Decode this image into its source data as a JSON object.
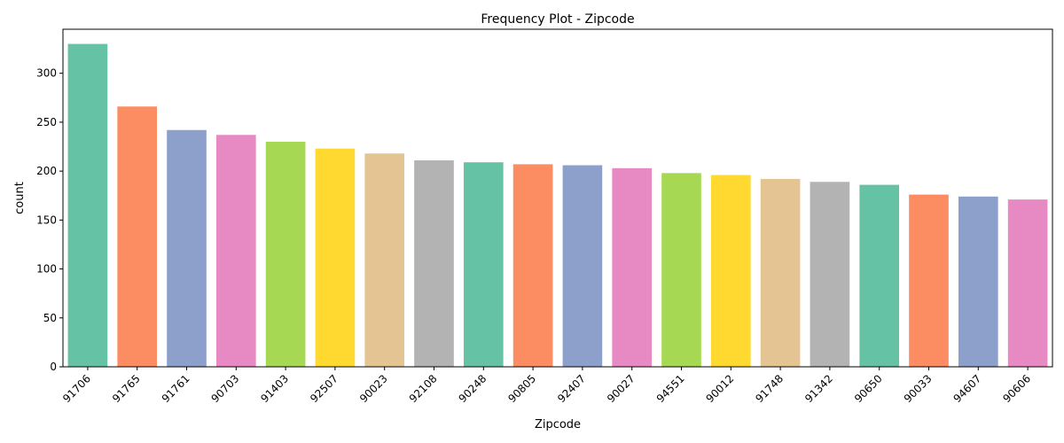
{
  "chart_data": {
    "type": "bar",
    "title": "Frequency Plot - Zipcode",
    "xlabel": "Zipcode",
    "ylabel": "count",
    "ylim": [
      0,
      345
    ],
    "yticks": [
      0,
      50,
      100,
      150,
      200,
      250,
      300
    ],
    "grid": false,
    "legend": "none",
    "categories": [
      "91706",
      "91765",
      "91761",
      "90703",
      "91403",
      "92507",
      "90023",
      "92108",
      "90248",
      "90805",
      "92407",
      "90027",
      "94551",
      "90012",
      "91748",
      "91342",
      "90650",
      "90033",
      "94607",
      "90606"
    ],
    "values": [
      330,
      266,
      242,
      237,
      230,
      223,
      218,
      211,
      209,
      207,
      206,
      203,
      198,
      196,
      192,
      189,
      186,
      176,
      174,
      171
    ],
    "colors": [
      "#66c2a5",
      "#fc8d62",
      "#8da0cb",
      "#e78ac3",
      "#a6d854",
      "#ffd92f",
      "#e5c494",
      "#b3b3b3"
    ]
  }
}
